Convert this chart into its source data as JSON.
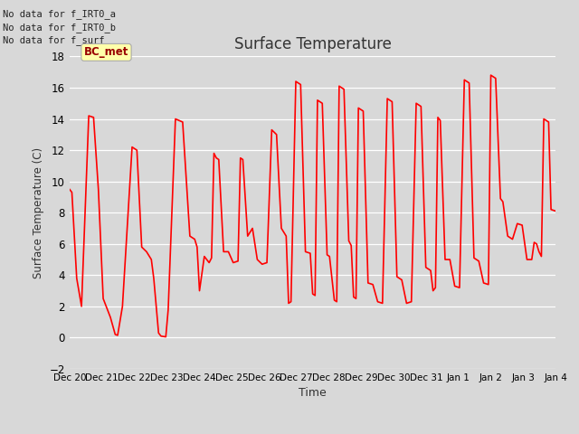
{
  "title": "Surface Temperature",
  "ylabel": "Surface Temperature (C)",
  "xlabel": "Time",
  "ylim": [
    -2,
    18
  ],
  "yticks": [
    -2,
    0,
    2,
    4,
    6,
    8,
    10,
    12,
    14,
    16,
    18
  ],
  "background_color": "#d8d8d8",
  "plot_bg_color": "#d8d8d8",
  "line_color": "#ff0000",
  "annotations": [
    "No data for f_IRT0_a",
    "No data for f_IRT0_b",
    "No data for f_surf"
  ],
  "bc_met_label": "BC_met",
  "x_tick_labels": [
    "Dec 20",
    "Dec 21",
    "Dec 22",
    "Dec 23",
    "Dec 24",
    "Dec 25",
    "Dec 26",
    "Dec 27",
    "Dec 28",
    "Dec 29",
    "Dec 30",
    "Dec 31",
    "Jan 1",
    "Jan 2",
    "Jan 3",
    "Jan 4"
  ],
  "data_points": [
    [
      0.0,
      9.5
    ],
    [
      0.05,
      9.3
    ],
    [
      0.15,
      3.8
    ],
    [
      0.25,
      2.0
    ],
    [
      0.4,
      14.2
    ],
    [
      0.5,
      14.1
    ],
    [
      0.6,
      9.5
    ],
    [
      0.7,
      2.5
    ],
    [
      0.85,
      1.3
    ],
    [
      0.95,
      0.2
    ],
    [
      1.0,
      0.15
    ],
    [
      1.1,
      2.0
    ],
    [
      1.3,
      12.2
    ],
    [
      1.4,
      12.0
    ],
    [
      1.5,
      5.8
    ],
    [
      1.6,
      5.5
    ],
    [
      1.7,
      5.0
    ],
    [
      1.75,
      3.8
    ],
    [
      1.85,
      0.3
    ],
    [
      1.9,
      0.1
    ],
    [
      2.0,
      0.05
    ],
    [
      2.05,
      1.8
    ],
    [
      2.2,
      14.0
    ],
    [
      2.35,
      13.8
    ],
    [
      2.5,
      6.5
    ],
    [
      2.6,
      6.3
    ],
    [
      2.65,
      5.8
    ],
    [
      2.7,
      3.0
    ],
    [
      2.8,
      5.2
    ],
    [
      2.85,
      5.0
    ],
    [
      2.9,
      4.8
    ],
    [
      2.95,
      5.1
    ],
    [
      3.0,
      11.8
    ],
    [
      3.05,
      11.5
    ],
    [
      3.1,
      11.4
    ],
    [
      3.2,
      5.5
    ],
    [
      3.3,
      5.5
    ],
    [
      3.4,
      4.8
    ],
    [
      3.5,
      4.9
    ],
    [
      3.55,
      11.5
    ],
    [
      3.6,
      11.4
    ],
    [
      3.7,
      6.5
    ],
    [
      3.8,
      7.0
    ],
    [
      3.9,
      5.0
    ],
    [
      4.0,
      4.7
    ],
    [
      4.1,
      4.8
    ],
    [
      4.2,
      13.3
    ],
    [
      4.3,
      13.0
    ],
    [
      4.4,
      7.0
    ],
    [
      4.5,
      6.5
    ],
    [
      4.55,
      2.2
    ],
    [
      4.6,
      2.3
    ],
    [
      4.7,
      16.4
    ],
    [
      4.8,
      16.2
    ],
    [
      4.9,
      5.5
    ],
    [
      5.0,
      5.4
    ],
    [
      5.05,
      2.8
    ],
    [
      5.1,
      2.7
    ],
    [
      5.15,
      15.2
    ],
    [
      5.25,
      15.0
    ],
    [
      5.35,
      5.3
    ],
    [
      5.4,
      5.2
    ],
    [
      5.5,
      2.4
    ],
    [
      5.55,
      2.3
    ],
    [
      5.6,
      16.1
    ],
    [
      5.7,
      15.9
    ],
    [
      5.8,
      6.2
    ],
    [
      5.85,
      5.9
    ],
    [
      5.9,
      2.6
    ],
    [
      5.95,
      2.5
    ],
    [
      6.0,
      14.7
    ],
    [
      6.1,
      14.5
    ],
    [
      6.2,
      3.5
    ],
    [
      6.3,
      3.4
    ],
    [
      6.4,
      2.3
    ],
    [
      6.5,
      2.2
    ],
    [
      6.6,
      15.3
    ],
    [
      6.7,
      15.1
    ],
    [
      6.8,
      3.9
    ],
    [
      6.9,
      3.7
    ],
    [
      7.0,
      2.2
    ],
    [
      7.1,
      2.3
    ],
    [
      7.2,
      15.0
    ],
    [
      7.3,
      14.8
    ],
    [
      7.4,
      4.5
    ],
    [
      7.5,
      4.3
    ],
    [
      7.55,
      3.0
    ],
    [
      7.6,
      3.2
    ],
    [
      7.65,
      14.1
    ],
    [
      7.7,
      13.9
    ],
    [
      7.8,
      5.0
    ],
    [
      7.9,
      5.0
    ],
    [
      8.0,
      3.3
    ],
    [
      8.1,
      3.2
    ],
    [
      8.2,
      16.5
    ],
    [
      8.3,
      16.3
    ],
    [
      8.4,
      5.1
    ],
    [
      8.5,
      4.9
    ],
    [
      8.6,
      3.5
    ],
    [
      8.7,
      3.4
    ],
    [
      8.75,
      16.8
    ],
    [
      8.85,
      16.6
    ],
    [
      8.95,
      8.9
    ],
    [
      9.0,
      8.7
    ],
    [
      9.1,
      6.5
    ],
    [
      9.2,
      6.3
    ],
    [
      9.3,
      7.3
    ],
    [
      9.4,
      7.2
    ],
    [
      9.5,
      5.0
    ],
    [
      9.6,
      5.0
    ],
    [
      9.65,
      6.1
    ],
    [
      9.7,
      6.0
    ],
    [
      9.75,
      5.5
    ],
    [
      9.8,
      5.2
    ],
    [
      9.85,
      14.0
    ],
    [
      9.95,
      13.8
    ],
    [
      10.0,
      8.2
    ],
    [
      10.1,
      8.1
    ]
  ]
}
